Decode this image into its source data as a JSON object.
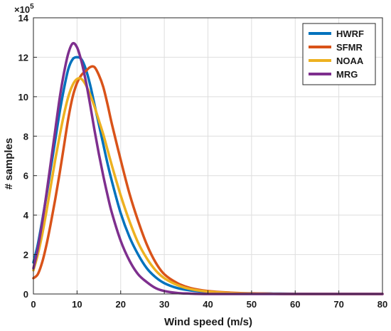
{
  "chart_data": {
    "type": "line",
    "title": "",
    "xlabel": "Wind speed (m/s)",
    "ylabel": "# samples",
    "y_multiplier_text": "×10",
    "y_multiplier_exp": "5",
    "xlim": [
      0,
      80
    ],
    "ylim": [
      0,
      14
    ],
    "xticks": [
      0,
      10,
      20,
      30,
      40,
      50,
      60,
      70,
      80
    ],
    "yticks": [
      0,
      2,
      4,
      6,
      8,
      10,
      12,
      14
    ],
    "grid": true,
    "legend_position": "top-right",
    "series": [
      {
        "name": "HWRF",
        "color": "#0072BD",
        "x": [
          0,
          1,
          2,
          3,
          4,
          5,
          6,
          7,
          8,
          9,
          10,
          11,
          12,
          13,
          14,
          15,
          16,
          17,
          18,
          20,
          22,
          24,
          26,
          28,
          30,
          33,
          36,
          40,
          45,
          50,
          55,
          60,
          70,
          80
        ],
        "y": [
          1.6,
          2.5,
          3.7,
          5.0,
          6.4,
          7.8,
          9.2,
          10.4,
          11.4,
          11.9,
          12.0,
          11.9,
          11.4,
          10.6,
          9.6,
          8.6,
          7.6,
          6.6,
          5.7,
          4.1,
          2.9,
          2.0,
          1.3,
          0.85,
          0.55,
          0.3,
          0.18,
          0.1,
          0.05,
          0.03,
          0.02,
          0.01,
          0.005,
          0.0
        ]
      },
      {
        "name": "SFMR",
        "color": "#D95319",
        "x": [
          0,
          1,
          2,
          3,
          4,
          5,
          6,
          7,
          8,
          9,
          10,
          11,
          12,
          13,
          14,
          15,
          16,
          17,
          18,
          20,
          22,
          24,
          26,
          28,
          30,
          33,
          36,
          40,
          45,
          50,
          55,
          60,
          70,
          80
        ],
        "y": [
          0.8,
          1.0,
          1.6,
          2.5,
          3.6,
          4.8,
          6.1,
          7.5,
          8.9,
          10.0,
          10.7,
          11.1,
          11.3,
          11.5,
          11.5,
          11.1,
          10.5,
          9.6,
          8.6,
          6.8,
          5.1,
          3.7,
          2.5,
          1.6,
          1.0,
          0.55,
          0.3,
          0.15,
          0.07,
          0.03,
          0.01,
          0.0,
          0.0,
          0.0
        ]
      },
      {
        "name": "NOAA",
        "color": "#EDB120",
        "x": [
          0,
          1,
          2,
          3,
          4,
          5,
          6,
          7,
          8,
          9,
          10,
          11,
          12,
          13,
          14,
          15,
          16,
          17,
          18,
          20,
          22,
          24,
          26,
          28,
          30,
          33,
          36,
          40,
          45,
          50,
          55,
          60,
          70,
          80
        ],
        "y": [
          1.2,
          2.0,
          3.0,
          4.2,
          5.5,
          6.8,
          8.0,
          9.1,
          10.0,
          10.6,
          10.9,
          10.9,
          10.6,
          10.1,
          9.5,
          8.8,
          8.1,
          7.3,
          6.5,
          5.0,
          3.7,
          2.6,
          1.8,
          1.2,
          0.8,
          0.45,
          0.25,
          0.12,
          0.05,
          0.02,
          0.01,
          0.0,
          0.0,
          0.0
        ]
      },
      {
        "name": "MRG",
        "color": "#7E2F8E",
        "x": [
          0,
          1,
          2,
          3,
          4,
          5,
          6,
          7,
          8,
          9,
          10,
          11,
          12,
          13,
          14,
          15,
          16,
          17,
          18,
          20,
          22,
          24,
          26,
          28,
          30,
          33,
          36,
          40,
          45,
          50,
          55,
          60,
          70,
          80
        ],
        "y": [
          1.3,
          2.3,
          3.6,
          5.1,
          6.7,
          8.3,
          9.9,
          11.2,
          12.2,
          12.7,
          12.5,
          11.8,
          10.8,
          9.6,
          8.3,
          7.1,
          6.0,
          5.0,
          4.1,
          2.7,
          1.7,
          1.0,
          0.6,
          0.3,
          0.15,
          0.05,
          0.02,
          0.0,
          0.0,
          0.0,
          0.0,
          0.0,
          0.0,
          0.0
        ]
      }
    ]
  }
}
